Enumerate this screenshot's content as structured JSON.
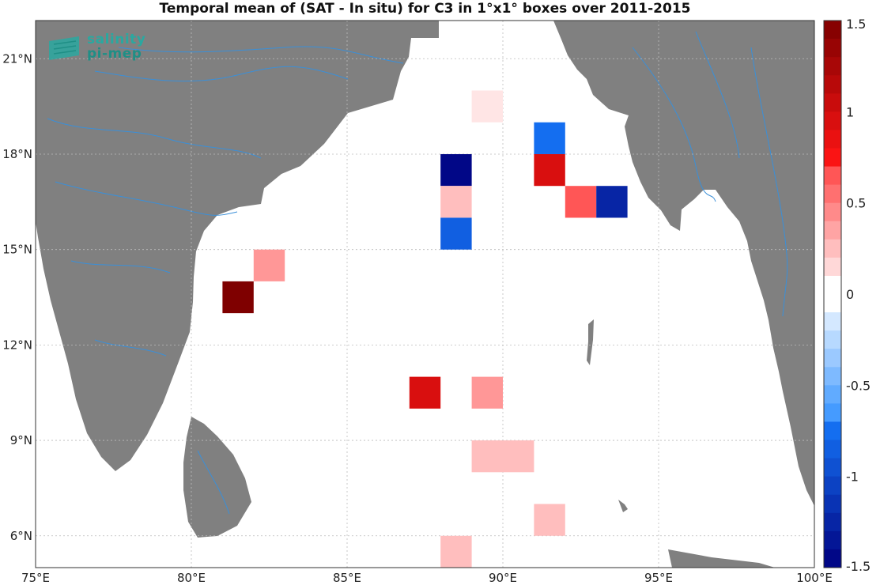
{
  "chart_data": {
    "type": "heatmap",
    "title": "Temporal mean of (SAT - In situ) for C3 in 1°x1° boxes over 2011-2015",
    "xlim": [
      75,
      100
    ],
    "ylim": [
      5,
      22.2
    ],
    "x_ticks": [
      75,
      80,
      85,
      90,
      95,
      100
    ],
    "x_tick_labels": [
      "75°E",
      "80°E",
      "85°E",
      "90°E",
      "95°E",
      "100°E"
    ],
    "y_ticks": [
      6,
      9,
      12,
      15,
      18,
      21
    ],
    "y_tick_labels": [
      "6°N",
      "9°N",
      "12°N",
      "15°N",
      "18°N",
      "21°N"
    ],
    "grid": true,
    "colorbar": {
      "range": [
        -1.5,
        1.5
      ],
      "ticks": [
        1.5,
        1,
        0.5,
        0,
        -0.5,
        -1,
        -1.5
      ],
      "tick_labels": [
        "1.5",
        "1",
        "0.5",
        "0",
        "-0.5",
        "-1",
        "-1.5"
      ],
      "levels": 30,
      "negative_color": "#00007f",
      "positive_color": "#7f0000"
    },
    "land_color": "#808080",
    "river_color": "#3a8fd8",
    "cells": [
      {
        "lon": 89.5,
        "lat": 19.5,
        "value": 0.1
      },
      {
        "lon": 91.5,
        "lat": 18.5,
        "value": -0.75
      },
      {
        "lon": 88.5,
        "lat": 17.5,
        "value": -1.45
      },
      {
        "lon": 91.5,
        "lat": 17.5,
        "value": 0.95
      },
      {
        "lon": 88.5,
        "lat": 16.5,
        "value": 0.25
      },
      {
        "lon": 92.5,
        "lat": 16.5,
        "value": 0.65
      },
      {
        "lon": 93.5,
        "lat": 16.5,
        "value": -1.25
      },
      {
        "lon": 88.5,
        "lat": 15.5,
        "value": -0.85
      },
      {
        "lon": 82.5,
        "lat": 14.5,
        "value": 0.4
      },
      {
        "lon": 81.5,
        "lat": 13.5,
        "value": 1.5
      },
      {
        "lon": 87.5,
        "lat": 10.5,
        "value": 0.95
      },
      {
        "lon": 89.5,
        "lat": 10.5,
        "value": 0.4
      },
      {
        "lon": 89.5,
        "lat": 8.5,
        "value": 0.25
      },
      {
        "lon": 90.5,
        "lat": 8.5,
        "value": 0.25
      },
      {
        "lon": 91.5,
        "lat": 6.5,
        "value": 0.25
      },
      {
        "lon": 88.5,
        "lat": 5.5,
        "value": 0.25
      }
    ]
  },
  "logo": {
    "line1": "salinity",
    "line2": "pi-mep"
  }
}
